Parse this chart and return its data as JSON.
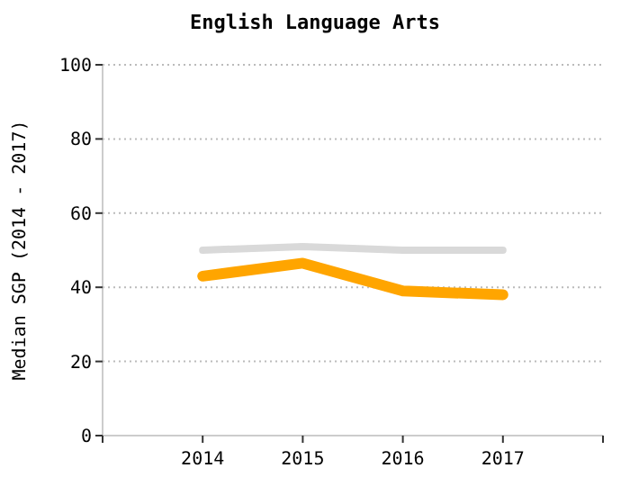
{
  "chart_data": {
    "type": "line",
    "title": "English Language Arts",
    "ylabel": "Median SGP (2014 - 2017)",
    "categories": [
      "2014",
      "2015",
      "2016",
      "2017"
    ],
    "series": [
      {
        "color": "#d9d9d9",
        "values": [
          50,
          51,
          50,
          50
        ]
      },
      {
        "color": "#ffa500",
        "values": [
          43,
          46.5,
          39,
          38
        ]
      }
    ],
    "ylim": [
      0,
      100
    ],
    "yticks": [
      0,
      20,
      40,
      60,
      80,
      100
    ],
    "grid": "y"
  }
}
